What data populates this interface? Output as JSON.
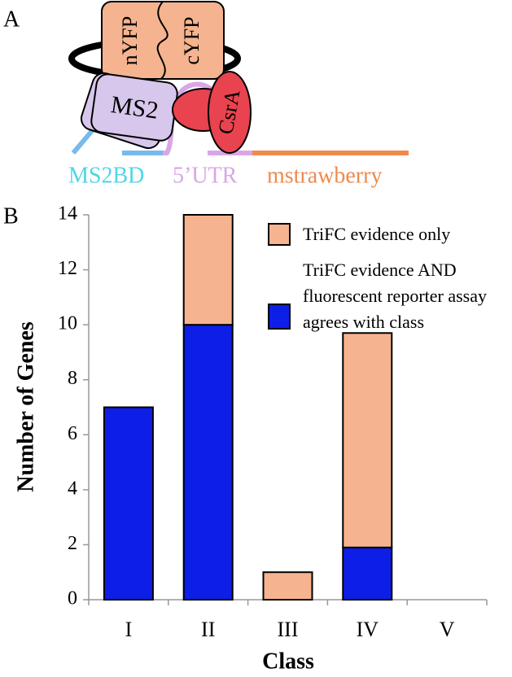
{
  "panels": {
    "a": "A",
    "b": "B"
  },
  "diagram": {
    "nyfp": "nYFP",
    "cyfp": "cYFP",
    "ms2": "MS2",
    "csra": "CsrA",
    "ms2bd": "MS2BD",
    "utr": "5’UTR",
    "mstrawberry": "mstrawberry"
  },
  "chart_data": {
    "type": "bar",
    "stacked": true,
    "x_label": "Class",
    "y_label": "Number of Genes",
    "categories": [
      "I",
      "II",
      "III",
      "IV",
      "V"
    ],
    "series": [
      {
        "name": "TriFC evidence AND fluorescent reporter assay agrees with class",
        "color": "#0d1fe6",
        "values": [
          7,
          10,
          0,
          1.9,
          0
        ]
      },
      {
        "name": "TriFC evidence only",
        "color": "#f5b48f",
        "values": [
          0,
          4,
          1,
          7.8,
          0
        ]
      }
    ],
    "ylim": [
      0,
      14
    ],
    "yticks": [
      0,
      2,
      4,
      6,
      8,
      10,
      12,
      14
    ],
    "legend": "upper right"
  }
}
